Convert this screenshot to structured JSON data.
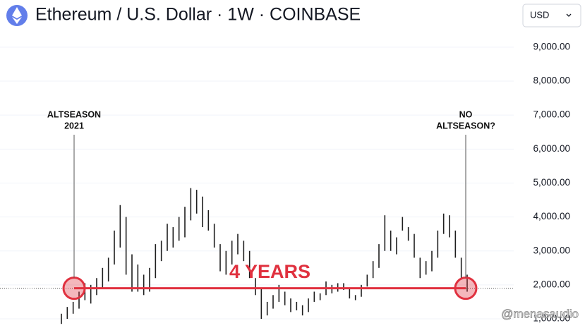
{
  "header": {
    "title": "Ethereum / U.S. Dollar · 1W · COINBASE",
    "currency": "USD",
    "watermark": "@menasaudio"
  },
  "chart_data": {
    "type": "range-bar",
    "color": "#1e1e1e",
    "lows": [
      850,
      1000,
      1150,
      1300,
      1550,
      1450,
      1700,
      1900,
      2100,
      2600,
      3100,
      2300,
      1800,
      1800,
      1700,
      1800,
      2200,
      2700,
      3000,
      3100,
      3300,
      3400,
      3900,
      4100,
      3700,
      3600,
      3100,
      2400,
      2300,
      2600,
      2900,
      2700,
      2200,
      1700,
      1000,
      1100,
      1300,
      1500,
      1400,
      1200,
      1250,
      1100,
      1200,
      1500,
      1550,
      1700,
      1750,
      1800,
      1850,
      1600,
      1550,
      1650,
      1950,
      2200,
      2500,
      3000,
      3000,
      2900,
      3600,
      3300,
      2800,
      2200,
      2300,
      2400,
      2800,
      3500,
      3400,
      2800,
      2200,
      1800
    ],
    "highs": [
      1150,
      1350,
      1500,
      1800,
      2050,
      2000,
      2200,
      2500,
      2800,
      3600,
      4350,
      4000,
      2900,
      2600,
      2300,
      2500,
      3200,
      3300,
      3800,
      3700,
      4000,
      4300,
      4850,
      4800,
      4600,
      4200,
      3800,
      3200,
      3000,
      3300,
      3500,
      3300,
      3000,
      2200,
      1900,
      1500,
      1700,
      2000,
      1800,
      1600,
      1500,
      1400,
      1600,
      1800,
      1750,
      2100,
      2000,
      2050,
      2050,
      1900,
      1700,
      2000,
      2300,
      2700,
      3200,
      4050,
      3600,
      3400,
      4000,
      3700,
      3500,
      2800,
      2700,
      3000,
      3600,
      4100,
      4050,
      3600,
      2800,
      2300
    ],
    "ylim": [
      730,
      10390
    ],
    "yticks": [
      {
        "value": 1000,
        "label": "1,000.00"
      },
      {
        "value": 2000,
        "label": "2,000.00"
      },
      {
        "value": 3000,
        "label": "3,000.00"
      },
      {
        "value": 4000,
        "label": "4,000.00"
      },
      {
        "value": 5000,
        "label": "5,000.00"
      },
      {
        "value": 6000,
        "label": "6,000.00"
      },
      {
        "value": 7000,
        "label": "7,000.00"
      },
      {
        "value": 8000,
        "label": "8,000.00"
      },
      {
        "value": 9000,
        "label": "9,000.00"
      }
    ],
    "grid": true,
    "level": 1900,
    "level_color": "#e0313f",
    "span_label": "4 YEARS",
    "annotations": [
      {
        "lines": [
          "ALTSEASON",
          "2021"
        ]
      },
      {
        "lines": [
          "NO",
          "ALTSEASON?"
        ]
      }
    ]
  }
}
